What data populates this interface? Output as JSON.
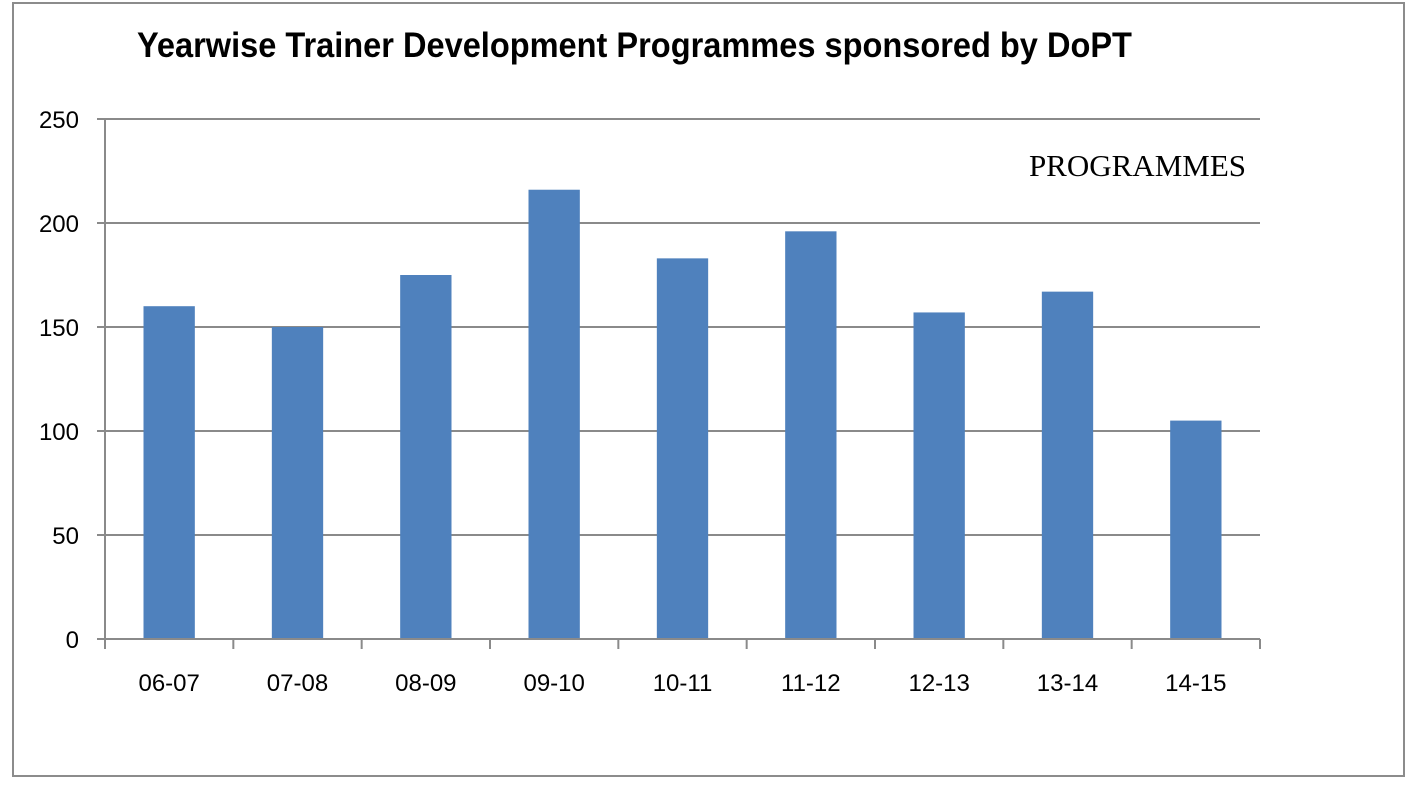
{
  "chart_data": {
    "type": "bar",
    "title": "Yearwise Trainer Development Programmes sponsored by DoPT",
    "categories": [
      "06-07",
      "07-08",
      "08-09",
      "09-10",
      "10-11",
      "11-12",
      "12-13",
      "13-14",
      "14-15"
    ],
    "series": [
      {
        "name": "PROGRAMMES",
        "values": [
          160,
          150,
          175,
          216,
          183,
          196,
          157,
          167,
          105
        ]
      }
    ],
    "ylim": [
      0,
      250
    ],
    "yticks": [
      0,
      50,
      100,
      150,
      200,
      250
    ],
    "grid": true,
    "legend_position": "top-right",
    "bar_color": "#4f81bd"
  }
}
